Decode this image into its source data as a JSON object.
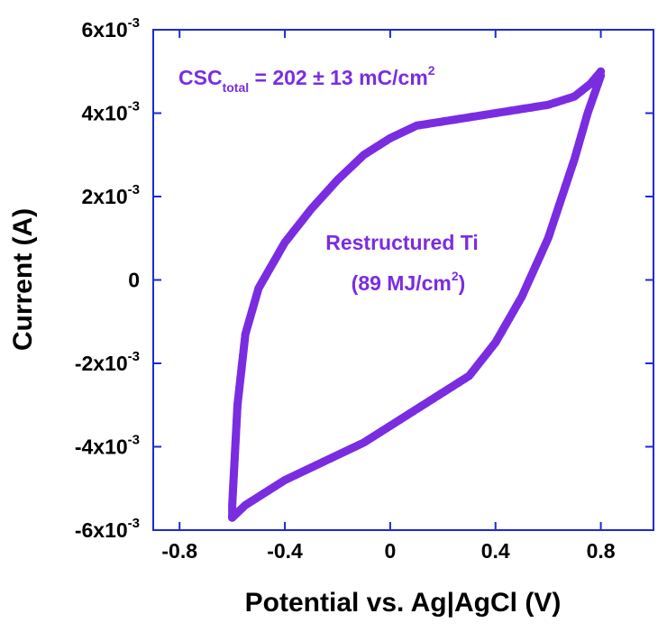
{
  "chart_data": {
    "type": "scatter",
    "title": "",
    "xlabel": "Potential vs. Ag|AgCl (V)",
    "ylabel": "Current (A)",
    "xlim": [
      -0.9,
      1.0
    ],
    "ylim": [
      -0.006,
      0.006
    ],
    "xticks": [
      {
        "value": -0.8,
        "label": "-0.8"
      },
      {
        "value": -0.4,
        "label": "-0.4"
      },
      {
        "value": 0,
        "label": "0"
      },
      {
        "value": 0.4,
        "label": "0.4"
      },
      {
        "value": 0.8,
        "label": "0.8"
      }
    ],
    "yticks": [
      {
        "value": 0.006,
        "base": "6x10",
        "exp": "-3"
      },
      {
        "value": 0.004,
        "base": "4x10",
        "exp": "-3"
      },
      {
        "value": 0.002,
        "base": "2x10",
        "exp": "-3"
      },
      {
        "value": 0,
        "base": "0",
        "exp": ""
      },
      {
        "value": -0.002,
        "base": "-2x10",
        "exp": "-3"
      },
      {
        "value": -0.004,
        "base": "-4x10",
        "exp": "-3"
      },
      {
        "value": -0.006,
        "base": "-6x10",
        "exp": "-3"
      }
    ],
    "series": [
      {
        "name": "Restructured Ti (89 MJ/cm2)",
        "color": "#7a2de0",
        "anodic_sweep": [
          [
            -0.6,
            -0.0057
          ],
          [
            -0.55,
            -0.0054
          ],
          [
            -0.5,
            -0.0052
          ],
          [
            -0.45,
            -0.005
          ],
          [
            -0.4,
            -0.0048
          ],
          [
            -0.3,
            -0.0045
          ],
          [
            -0.2,
            -0.0042
          ],
          [
            -0.1,
            -0.0039
          ],
          [
            0.0,
            -0.0035
          ],
          [
            0.1,
            -0.0031
          ],
          [
            0.2,
            -0.0027
          ],
          [
            0.3,
            -0.0023
          ],
          [
            0.4,
            -0.0015
          ],
          [
            0.5,
            -0.0004
          ],
          [
            0.6,
            0.001
          ],
          [
            0.7,
            0.0029
          ],
          [
            0.75,
            0.004
          ],
          [
            0.8,
            0.0049
          ]
        ],
        "cathodic_sweep": [
          [
            0.8,
            0.005
          ],
          [
            0.76,
            0.0047
          ],
          [
            0.7,
            0.0044
          ],
          [
            0.6,
            0.0042
          ],
          [
            0.5,
            0.0041
          ],
          [
            0.4,
            0.004
          ],
          [
            0.3,
            0.0039
          ],
          [
            0.2,
            0.0038
          ],
          [
            0.1,
            0.0037
          ],
          [
            0.0,
            0.0034
          ],
          [
            -0.1,
            0.003
          ],
          [
            -0.2,
            0.0024
          ],
          [
            -0.3,
            0.0017
          ],
          [
            -0.4,
            0.0009
          ],
          [
            -0.5,
            -0.0002
          ],
          [
            -0.55,
            -0.0013
          ],
          [
            -0.58,
            -0.003
          ],
          [
            -0.6,
            -0.0054
          ],
          [
            -0.6,
            -0.0057
          ]
        ]
      }
    ],
    "annotations": {
      "csc_main": "CSC",
      "csc_sub": "total",
      "csc_value": " = 202 ± 13 mC/cm",
      "csc_sup": "2",
      "label_line1": "Restructured Ti",
      "label_line2_pre": "(89 MJ/cm",
      "label_line2_sup": "2",
      "label_line2_post": ")"
    },
    "grid": false,
    "legend": "none"
  }
}
